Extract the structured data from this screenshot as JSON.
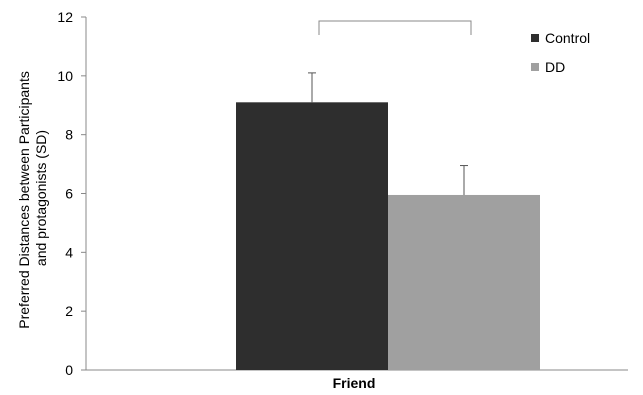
{
  "chart_data": {
    "type": "bar",
    "title": "",
    "xlabel": "",
    "ylabel_lines": [
      "Preferred Distances between Participants",
      "and protagonists (SD)"
    ],
    "categories": [
      "Friend"
    ],
    "series": [
      {
        "name": "Control",
        "values": [
          9.1
        ],
        "error": [
          1.0
        ],
        "color": "#2e2e2e"
      },
      {
        "name": "DD",
        "values": [
          5.95
        ],
        "error": [
          1.0
        ],
        "color": "#a0a0a0"
      }
    ],
    "ylim": [
      0,
      12
    ],
    "yticks": [
      "0",
      "2",
      "4",
      "6",
      "8",
      "10",
      "12"
    ],
    "grid": false,
    "legend_position": "top-right",
    "significance_bracket": true
  }
}
